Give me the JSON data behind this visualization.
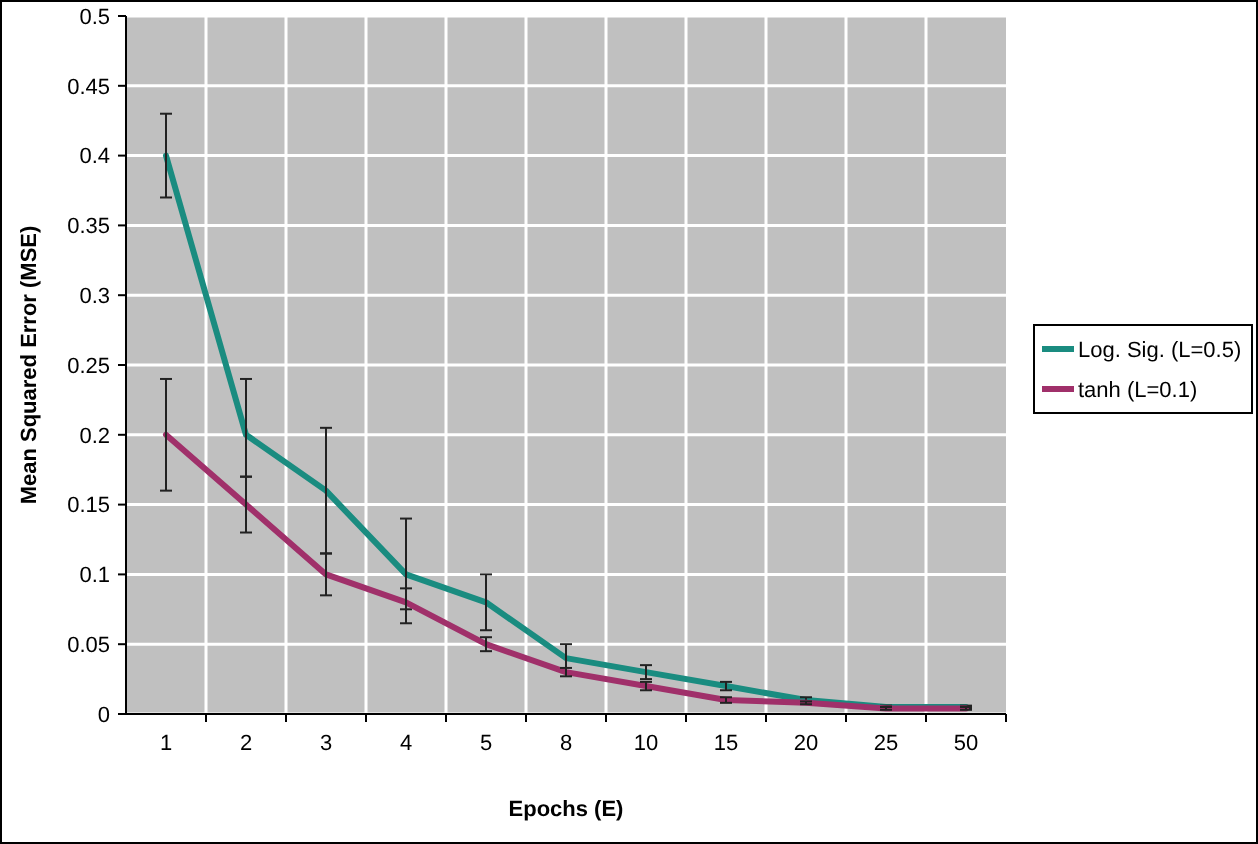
{
  "chart_data": {
    "type": "line",
    "xlabel": "Epochs (E)",
    "ylabel": "Mean Squared Error (MSE)",
    "categories": [
      "1",
      "2",
      "3",
      "4",
      "5",
      "8",
      "10",
      "15",
      "20",
      "25",
      "50"
    ],
    "series": [
      {
        "name": "Log. Sig. (L=0.5)",
        "color": "#1a8c80",
        "values": [
          0.4,
          0.2,
          0.16,
          0.1,
          0.08,
          0.04,
          0.03,
          0.02,
          0.01,
          0.005,
          0.005
        ],
        "errors": [
          0.03,
          [
            0.17,
            0.24
          ],
          [
            0.115,
            0.205
          ],
          [
            0.075,
            0.14
          ],
          [
            0.06,
            0.1
          ],
          [
            0.03,
            0.05
          ],
          0.005,
          0.003,
          0.002,
          0.001,
          0.001
        ]
      },
      {
        "name": "tanh (L=0.1)",
        "color": "#a0306a",
        "values": [
          0.2,
          0.15,
          0.1,
          0.08,
          0.05,
          0.03,
          0.02,
          0.01,
          0.008,
          0.004,
          0.004
        ],
        "errors": [
          0.04,
          0.02,
          0.015,
          [
            0.065,
            0.09
          ],
          0.005,
          0.003,
          0.003,
          0.002,
          0.001,
          0.001,
          0.001
        ]
      }
    ],
    "ylim": [
      0,
      0.5
    ],
    "yticks": [
      0,
      0.05,
      0.1,
      0.15,
      0.2,
      0.25,
      0.3,
      0.35,
      0.4,
      0.45,
      0.5
    ],
    "grid": true,
    "legend": "right",
    "marker": "none",
    "line_style": "solid"
  }
}
